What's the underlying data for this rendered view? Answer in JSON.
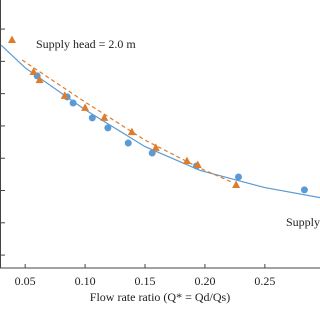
{
  "chart_data": {
    "type": "scatter",
    "xlabel": "Flow rate ratio (Q* = Qd/Qs)",
    "annotations": [
      "Supply head = 2.0 m",
      "Supply"
    ],
    "xlim": [
      0.029,
      0.296
    ],
    "xticks": [
      0.05,
      0.1,
      0.15,
      0.2,
      0.25
    ],
    "xtick_labels": [
      "0.05",
      "0.10",
      "0.15",
      "0.20",
      "0.25"
    ],
    "ylim": [
      0.6,
      8.9
    ],
    "yticks": [
      1,
      2,
      3,
      4,
      5,
      6,
      7,
      8
    ],
    "series": [
      {
        "color": "#5b9bd5",
        "marker": "circle",
        "x": [
          0.06,
          0.085,
          0.09,
          0.106,
          0.119,
          0.136,
          0.156,
          0.193,
          0.228,
          0.283
        ],
        "values": [
          6.55,
          5.9,
          5.71,
          5.25,
          4.94,
          4.47,
          4.16,
          3.76,
          3.42,
          3.02
        ]
      },
      {
        "color": "#e07b2a",
        "marker": "triangle",
        "x": [
          0.039,
          0.057,
          0.062,
          0.083,
          0.1,
          0.116,
          0.139,
          0.159,
          0.185,
          0.194,
          0.226
        ],
        "values": [
          7.66,
          6.67,
          6.42,
          5.93,
          5.56,
          5.25,
          4.81,
          4.32,
          3.91,
          3.79,
          3.17
        ]
      }
    ],
    "fits": [
      {
        "color": "#5b9bd5",
        "dash": false,
        "x": [
          0.03,
          0.05,
          0.1,
          0.15,
          0.196,
          0.25,
          0.296
        ],
        "values": [
          7.5,
          6.8,
          5.5,
          4.36,
          3.62,
          3.09,
          2.78
        ]
      },
      {
        "color": "#e07b2a",
        "dash": true,
        "x": [
          0.0475,
          0.1,
          0.15,
          0.196,
          0.2225
        ],
        "values": [
          7.04,
          5.74,
          4.56,
          3.69,
          3.26
        ]
      }
    ]
  }
}
